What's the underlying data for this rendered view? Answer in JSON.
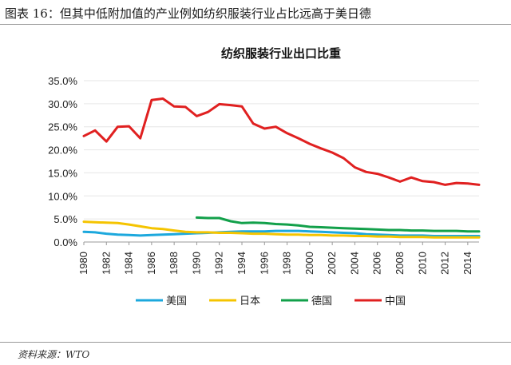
{
  "figure_title": "图表 16：但其中低附加值的产业例如纺织服装行业占比远高于美日德",
  "source": "资料来源：WTO",
  "chart_data": {
    "type": "line",
    "title": "纺织服装行业出口比重",
    "xlabel": "",
    "ylabel": "",
    "ylim": [
      0,
      35
    ],
    "y_ticks": [
      "0.0%",
      "5.0%",
      "10.0%",
      "15.0%",
      "20.0%",
      "25.0%",
      "30.0%",
      "35.0%"
    ],
    "x_ticks": [
      "1980",
      "1982",
      "1984",
      "1986",
      "1988",
      "1990",
      "1992",
      "1994",
      "1996",
      "1998",
      "2000",
      "2002",
      "2004",
      "2006",
      "2008",
      "2010",
      "2012",
      "2014"
    ],
    "x": [
      1980,
      1981,
      1982,
      1983,
      1984,
      1985,
      1986,
      1987,
      1988,
      1989,
      1990,
      1991,
      1992,
      1993,
      1994,
      1995,
      1996,
      1997,
      1998,
      1999,
      2000,
      2001,
      2002,
      2003,
      2004,
      2005,
      2006,
      2007,
      2008,
      2009,
      2010,
      2011,
      2012,
      2013,
      2014,
      2015
    ],
    "legend_position": "bottom",
    "series": [
      {
        "name": "美国",
        "color": "#1ca8dd",
        "values": [
          2.2,
          2.1,
          1.8,
          1.6,
          1.5,
          1.4,
          1.5,
          1.6,
          1.7,
          1.8,
          1.9,
          2.0,
          2.1,
          2.2,
          2.3,
          2.3,
          2.3,
          2.4,
          2.4,
          2.4,
          2.3,
          2.2,
          2.1,
          2.0,
          1.9,
          1.7,
          1.6,
          1.5,
          1.4,
          1.4,
          1.4,
          1.3,
          1.3,
          1.3,
          1.3,
          1.3
        ]
      },
      {
        "name": "日本",
        "color": "#f5c400",
        "values": [
          4.4,
          4.3,
          4.2,
          4.1,
          3.8,
          3.4,
          3.0,
          2.8,
          2.5,
          2.2,
          2.1,
          2.1,
          2.0,
          2.0,
          1.9,
          1.8,
          1.8,
          1.7,
          1.6,
          1.6,
          1.5,
          1.5,
          1.4,
          1.4,
          1.3,
          1.3,
          1.2,
          1.2,
          1.1,
          1.1,
          1.1,
          1.0,
          1.0,
          1.0,
          1.0,
          1.0
        ]
      },
      {
        "name": "德国",
        "color": "#12a04a",
        "values": [
          null,
          null,
          null,
          null,
          null,
          null,
          null,
          null,
          null,
          null,
          5.3,
          5.2,
          5.2,
          4.5,
          4.1,
          4.2,
          4.1,
          3.9,
          3.8,
          3.6,
          3.3,
          3.2,
          3.1,
          3.0,
          2.9,
          2.8,
          2.7,
          2.6,
          2.6,
          2.5,
          2.5,
          2.4,
          2.4,
          2.4,
          2.3,
          2.3
        ]
      },
      {
        "name": "中国",
        "color": "#e02020",
        "values": [
          23.0,
          24.2,
          21.8,
          25.0,
          25.1,
          22.5,
          30.8,
          31.1,
          29.4,
          29.3,
          27.3,
          28.2,
          29.9,
          29.7,
          29.4,
          25.7,
          24.6,
          25.0,
          23.6,
          22.5,
          21.3,
          20.3,
          19.4,
          18.2,
          16.2,
          15.2,
          14.8,
          14.0,
          13.1,
          14.0,
          13.2,
          13.0,
          12.4,
          12.8,
          12.7,
          12.4
        ]
      }
    ]
  }
}
